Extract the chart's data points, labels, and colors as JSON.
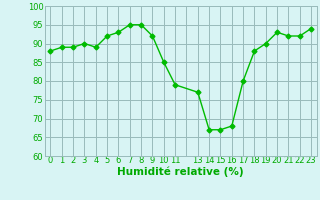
{
  "x": [
    0,
    1,
    2,
    3,
    4,
    5,
    6,
    7,
    8,
    9,
    10,
    11,
    13,
    14,
    15,
    16,
    17,
    18,
    19,
    20,
    21,
    22,
    23
  ],
  "y": [
    88,
    89,
    89,
    90,
    89,
    92,
    93,
    95,
    95,
    92,
    85,
    79,
    77,
    67,
    67,
    68,
    80,
    88,
    90,
    93,
    92,
    92,
    94
  ],
  "line_color": "#00bb00",
  "marker": "D",
  "marker_size": 2.5,
  "bg_color": "#d8f4f4",
  "grid_color": "#99bbbb",
  "ylim": [
    60,
    100
  ],
  "yticks": [
    60,
    65,
    70,
    75,
    80,
    85,
    90,
    95,
    100
  ],
  "xlabel": "Humidité relative (%)",
  "xlabel_color": "#00aa00",
  "tick_color": "#00aa00",
  "tick_fontsize": 6,
  "xlabel_fontsize": 7.5
}
